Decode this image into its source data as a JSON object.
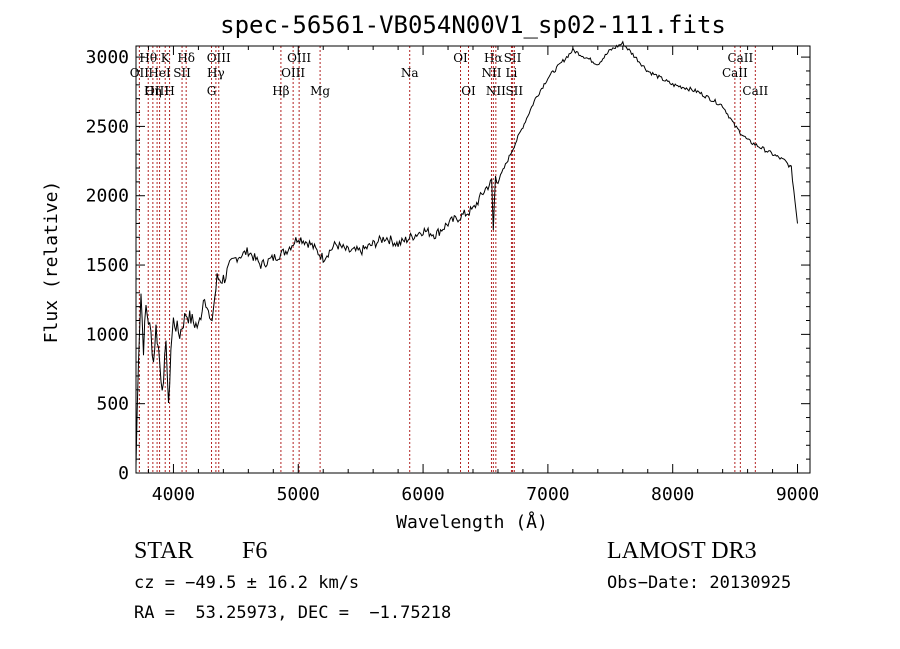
{
  "chart_data": {
    "type": "line",
    "title": "spec-56561-VB054N00V1_sp02-111.fits",
    "xlabel": "Wavelength (Å)",
    "ylabel": "Flux (relative)",
    "xlim": [
      3700,
      9100
    ],
    "ylim": [
      0,
      3080
    ],
    "xticks": [
      4000,
      5000,
      6000,
      7000,
      8000,
      9000
    ],
    "yticks": [
      0,
      500,
      1000,
      1500,
      2000,
      2500,
      3000
    ],
    "grid": false,
    "series": [
      {
        "name": "flux",
        "x": [
          3700,
          3720,
          3740,
          3760,
          3780,
          3800,
          3820,
          3840,
          3860,
          3880,
          3900,
          3920,
          3940,
          3960,
          3980,
          4000,
          4050,
          4100,
          4150,
          4200,
          4250,
          4300,
          4350,
          4400,
          4500,
          4600,
          4700,
          4800,
          4900,
          5000,
          5100,
          5200,
          5300,
          5400,
          5500,
          5600,
          5700,
          5800,
          5900,
          6000,
          6100,
          6200,
          6300,
          6400,
          6500,
          6550,
          6563,
          6580,
          6600,
          6700,
          6800,
          6900,
          7000,
          7100,
          7200,
          7300,
          7400,
          7500,
          7600,
          7700,
          7800,
          7900,
          8000,
          8100,
          8200,
          8300,
          8400,
          8500,
          8600,
          8700,
          8800,
          8900,
          8950,
          9000
        ],
        "y": [
          50,
          850,
          1300,
          900,
          1200,
          1100,
          1000,
          800,
          1050,
          900,
          700,
          600,
          1000,
          450,
          900,
          1100,
          1000,
          1150,
          1100,
          1050,
          1300,
          1050,
          1400,
          1400,
          1550,
          1600,
          1500,
          1550,
          1600,
          1700,
          1650,
          1550,
          1650,
          1600,
          1600,
          1650,
          1700,
          1650,
          1700,
          1750,
          1720,
          1800,
          1850,
          1900,
          2050,
          2100,
          1750,
          2150,
          2100,
          2300,
          2500,
          2700,
          2850,
          2950,
          3050,
          3000,
          2950,
          3050,
          3100,
          3000,
          2900,
          2850,
          2800,
          2780,
          2750,
          2700,
          2650,
          2500,
          2400,
          2350,
          2300,
          2250,
          2200,
          1800
        ]
      }
    ],
    "line_markers": [
      {
        "label": "Hθ",
        "x": 3798,
        "row": 1
      },
      {
        "label": "OII",
        "x": 3727,
        "row": 2
      },
      {
        "label": "OIII",
        "x": 3869,
        "row": 3
      },
      {
        "label": "K",
        "x": 3934,
        "row": 1
      },
      {
        "label": "HeI",
        "x": 3889,
        "row": 2
      },
      {
        "label": "Hη",
        "x": 3835,
        "row": 3
      },
      {
        "label": "H",
        "x": 3969,
        "row": 3
      },
      {
        "label": "Hδ",
        "x": 4102,
        "row": 1
      },
      {
        "label": "SII",
        "x": 4069,
        "row": 2
      },
      {
        "label": "OIII",
        "x": 4363,
        "row": 1
      },
      {
        "label": "Hγ",
        "x": 4340,
        "row": 2
      },
      {
        "label": "G",
        "x": 4305,
        "row": 3
      },
      {
        "label": "OIII",
        "x": 5007,
        "row": 1
      },
      {
        "label": "OIII",
        "x": 4959,
        "row": 2
      },
      {
        "label": "Hβ",
        "x": 4861,
        "row": 3
      },
      {
        "label": "Mg",
        "x": 5175,
        "row": 3
      },
      {
        "label": "Na",
        "x": 5893,
        "row": 2
      },
      {
        "label": "OI",
        "x": 6300,
        "row": 1
      },
      {
        "label": "OI",
        "x": 6364,
        "row": 3
      },
      {
        "label": "Hα",
        "x": 6563,
        "row": 1
      },
      {
        "label": "NII",
        "x": 6548,
        "row": 2
      },
      {
        "label": "NII",
        "x": 6583,
        "row": 3
      },
      {
        "label": "SII",
        "x": 6717,
        "row": 1
      },
      {
        "label": "Li",
        "x": 6708,
        "row": 2
      },
      {
        "label": "SII",
        "x": 6731,
        "row": 3
      },
      {
        "label": "CaII",
        "x": 8542,
        "row": 1
      },
      {
        "label": "CaII",
        "x": 8498,
        "row": 2
      },
      {
        "label": "CaII",
        "x": 8662,
        "row": 3
      }
    ],
    "line_color": "#b22222"
  },
  "info": {
    "class_label": "STAR",
    "subclass": "F6",
    "survey": "LAMOST DR3",
    "cz": "cz = −49.5 ± 16.2 km/s",
    "obs_date": "Obs−Date: 20130925",
    "radec": "RA =  53.25973, DEC =  −1.75218"
  }
}
